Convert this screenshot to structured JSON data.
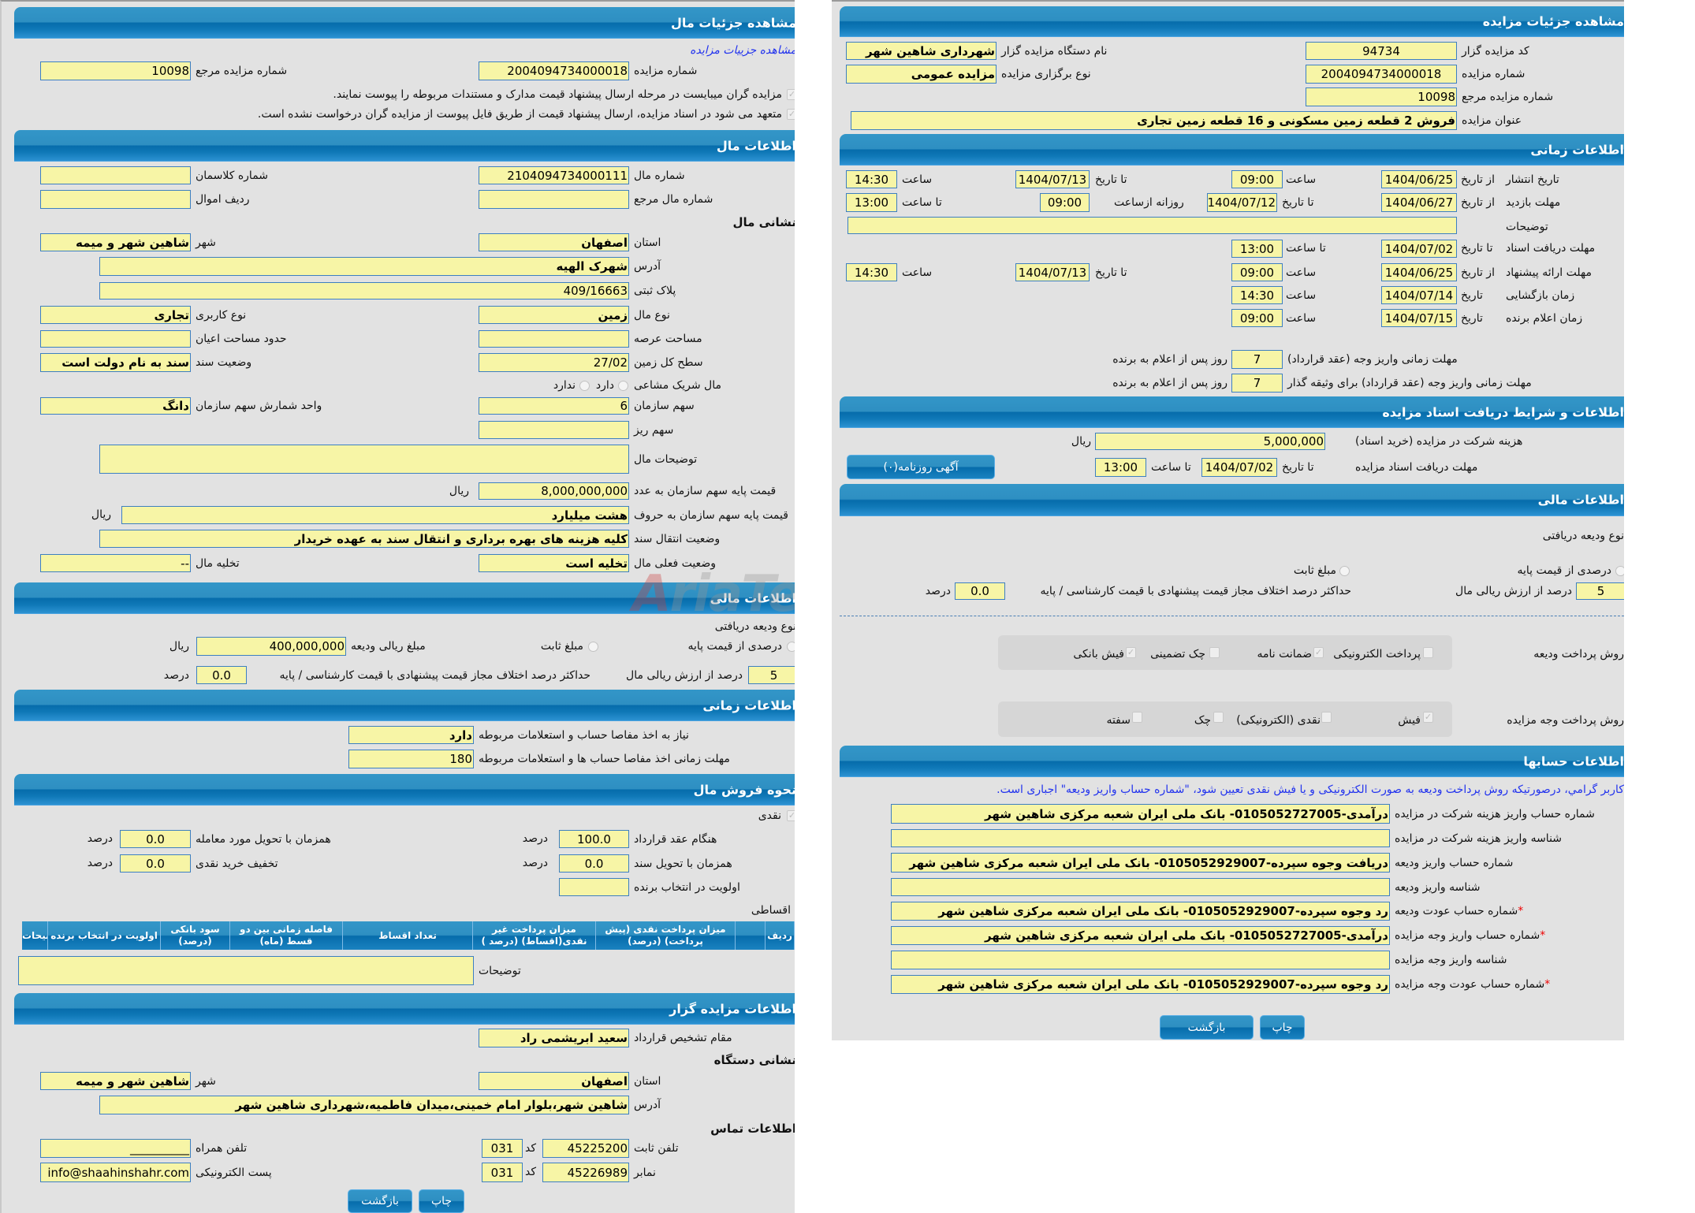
{
  "watermark": "AriaTender.net",
  "colors": {
    "header": "#0a6fae",
    "field_bg": "#f7f5a6",
    "field_border": "#3d7fc1",
    "link": "#2233ee",
    "required": "#ee0000"
  },
  "left": {
    "title": "مشاهده جزئیات مال",
    "view_auction_link": "مشاهده جزییات مزایده",
    "auction_number": {
      "label": "شماره مزایده",
      "value": "2004094734000018"
    },
    "ref_number": {
      "label": "شماره مزایده مرجع",
      "value": "10098"
    },
    "notices": [
      {
        "text": "مزایده گران میبایست در مرحله ارسال پیشنهاد قیمت مدارک و مستندات مربوطه را پیوست نمایند.",
        "checked": true
      },
      {
        "text": "متعهد می شود در اسناد مزایده، ارسال پیشنهاد قیمت از طریق فایل پیوست از مزایده گران درخواست نشده است.",
        "checked": true
      }
    ],
    "item": {
      "title": "اطلاعات مال",
      "item_number": {
        "label": "شماره مال",
        "value": "2104094734000111"
      },
      "classman": {
        "label": "شماره کلاسمان",
        "value": ""
      },
      "item_ref": {
        "label": "شماره مال مرجع",
        "value": ""
      },
      "asset_row": {
        "label": "ردیف اموال",
        "value": ""
      },
      "address_title": "نشانی مال",
      "province": {
        "label": "استان",
        "value": "اصفهان"
      },
      "city": {
        "label": "شهر",
        "value": "شاهین شهر و میمه"
      },
      "address": {
        "label": "آدرس",
        "value": "شهرک الهیه"
      },
      "plaque": {
        "label": "پلاک ثبتی",
        "value": "409/16663"
      },
      "type": {
        "label": "نوع مال",
        "value": "زمین"
      },
      "usage": {
        "label": "نوع کاربری",
        "value": "تجاری"
      },
      "land_area": {
        "label": "مساحت عرصه",
        "value": ""
      },
      "building_area": {
        "label": "حدود مساحت اعیان",
        "value": ""
      },
      "total_area": {
        "label": "سطح کل زمین",
        "value": "27/02"
      },
      "deed_status": {
        "label": "وضعیت سند",
        "value": "سند به نام دولت است"
      },
      "shared": {
        "label": "مال شریک مشاعی",
        "option_yes": "دارد",
        "option_no": "ندارد"
      },
      "org_share": {
        "label": "سهم سازمان",
        "value": "6"
      },
      "share_unit": {
        "label": "واحد شمارش سهم سازمان",
        "value": "دانگ"
      },
      "sub_share": {
        "label": "سهم ریز",
        "value": ""
      },
      "description": {
        "label": "توضیحات مال",
        "value": ""
      },
      "base_price": {
        "label": "قیمت پایه سهم سازمان به عدد",
        "value": "8,000,000,000",
        "unit": "ریال"
      },
      "base_price_words": {
        "label": "قیمت پایه سهم سازمان به حروف",
        "value": "هشت میلیارد",
        "unit": "ریال"
      },
      "transfer": {
        "label": "وضعیت انتقال سند",
        "value": "کلیه هزینه های بهره برداری و انتقال سند به عهده خریدار"
      },
      "current_status": {
        "label": "وضعیت فعلی مال",
        "value": "تخلیه است"
      },
      "eviction": {
        "label": "تخلیه مال",
        "value": "--"
      }
    },
    "finance": {
      "title": "اطلاعات مالی",
      "deposit_type_label": "نوع ودیعه دریافتی",
      "percent_option": "درصدی از قیمت پایه",
      "fixed_option": "مبلغ ثابت",
      "deposit_amount": {
        "label": "مبلغ ریالی ودیعه",
        "value": "400,000,000",
        "unit": "ریال"
      },
      "percent": {
        "label": "درصد از ارزش ریالی مال",
        "value": "5"
      },
      "max_diff": {
        "label": "حداکثر درصد اختلاف مجاز قیمت پیشنهادی با قیمت کارشناسی / پایه",
        "value": "0.0",
        "unit": "درصد"
      }
    },
    "timing": {
      "title": "اطلاعات زمانی",
      "settlement_needed": {
        "label": "نیاز به اخذ مفاصا حساب و استعلامات مربوطه",
        "value": "دارد"
      },
      "settlement_deadline": {
        "label": "مهلت زمانی اخذ مفاصا حساب ها و استعلامات مربوطه",
        "value": "180"
      }
    },
    "sale": {
      "title": "نحوه فروش مال",
      "cash": {
        "label": "نقدی",
        "checked": true
      },
      "on_contract": {
        "label": "هنگام عقد قرارداد",
        "value": "100.0",
        "unit": "درصد"
      },
      "on_delivery": {
        "label": "همزمان با تحویل مورد معامله",
        "value": "0.0",
        "unit": "درصد"
      },
      "on_deed": {
        "label": "همزمان با تحویل سند",
        "value": "0.0",
        "unit": "درصد"
      },
      "cash_discount": {
        "label": "تخفیف خرید نقدی",
        "value": "0.0",
        "unit": "درصد"
      },
      "priority": {
        "label": "اولویت در انتخاب برنده",
        "value": ""
      },
      "installment_label": "اقساطی",
      "table_headers": [
        "ردیف",
        "",
        "میزان پرداخت نقدی (پیش پرداخت) (درصد)",
        "میزان پرداخت غیر نقدی(اقساط) (درصد )",
        "تعداد اقساط",
        "فاصله زمانی بین دو قسط (ماه)",
        "سود بانکی (درصد)",
        "اولویت در انتخاب برنده",
        "توضیحات"
      ],
      "description": {
        "label": "توضیحات",
        "value": ""
      }
    },
    "auctioneer": {
      "title": "اطلاعات مزایده گزار",
      "authority": {
        "label": "مقام تشخیص قرارداد",
        "value": "سعید ابریشمی راد"
      },
      "address_title": "نشانی دستگاه",
      "province": {
        "label": "استان",
        "value": "اصفهان"
      },
      "city": {
        "label": "شهر",
        "value": "شاهین شهر و میمه"
      },
      "address": {
        "label": "آدرس",
        "value": "شاهین شهر،بلوار امام خمینی،میدان فاطمیه،شهرداری شاهین شهر"
      },
      "contact_title": "اطلاعات تماس",
      "phone": {
        "label": "تلفن ثابت",
        "value": "45225200",
        "code_label": "کد",
        "code": "031"
      },
      "mobile": {
        "label": "تلفن همراه",
        "value": "__________"
      },
      "fax": {
        "label": "نمابر",
        "value": "45226989",
        "code_label": "کد",
        "code": "031"
      },
      "email": {
        "label": "پست الکترونیکی",
        "value": "info@shaahinshahr.com"
      }
    },
    "print_button": "چاپ",
    "back_button": "بازگشت"
  },
  "right": {
    "title": "مشاهده جزئیات مزایده",
    "auctioneer_code": {
      "label": "کد مزایده گزار",
      "value": "94734"
    },
    "org_name": {
      "label": "نام دستگاه مزایده گزار",
      "value": "شهرداری شاهین شهر"
    },
    "auction_number": {
      "label": "شماره مزایده",
      "value": "2004094734000018"
    },
    "holding_type": {
      "label": "نوع برگزاری مزایده",
      "value": "مزایده عمومی"
    },
    "ref_number": {
      "label": "شماره مزایده مرجع",
      "value": "10098"
    },
    "subject": {
      "label": "عنوان مزایده",
      "value": "فروش 2 قطعه زمین مسکونی  و 16 قطعه زمین تجاری"
    },
    "timing": {
      "title": "اطلاعات زمانی",
      "publish": {
        "label": "تاریخ انتشار",
        "from_label": "از تاریخ",
        "from": "1404/06/25",
        "time_label": "ساعت",
        "from_time": "09:00",
        "to_label": "تا تاریخ",
        "to": "1404/07/13",
        "to_time_label": "ساعت",
        "to_time": "14:30"
      },
      "visit": {
        "label": "مهلت بازدید",
        "from_label": "از تاریخ",
        "from": "1404/06/27",
        "to_label": "تا تاریخ",
        "to": "1404/07/12",
        "daily_label": "روزانه ازساعت",
        "daily_from": "09:00",
        "until_label": "تا ساعت",
        "until": "13:00"
      },
      "description": {
        "label": "توضیحات",
        "value": ""
      },
      "doc_deadline": {
        "label": "مهلت دریافت اسناد",
        "to_label": "تا تاریخ",
        "to": "1404/07/02",
        "time_label": "تا ساعت",
        "time": "13:00"
      },
      "offer": {
        "label": "مهلت ارائه پیشنهاد",
        "from_label": "از تاریخ",
        "from": "1404/06/25",
        "time_label": "ساعت",
        "from_time": "09:00",
        "to_label": "تا تاریخ",
        "to": "1404/07/13",
        "to_time_label": "ساعت",
        "to_time": "14:30"
      },
      "opening": {
        "label": "زمان بازگشایی",
        "date_label": "تاریخ",
        "date": "1404/07/14",
        "time_label": "ساعت",
        "time": "14:30"
      },
      "winner": {
        "label": "زمان اعلام برنده",
        "date_label": "تاریخ",
        "date": "1404/07/15",
        "time_label": "ساعت",
        "time": "09:00"
      },
      "pay_deadline": {
        "label": "مهلت زمانی واریز وجه (عقد قرارداد)",
        "value": "7",
        "suffix": "روز پس از اعلام به برنده"
      },
      "pay_deadline_collateral": {
        "label": "مهلت زمانی واریز وجه (عقد قرارداد) برای وثیقه گذار",
        "value": "7",
        "suffix": "روز پس از اعلام به برنده"
      }
    },
    "docs": {
      "title": "اطلاعات و شرایط دریافت اسناد مزایده",
      "fee": {
        "label": "هزینه شرکت در مزایده (خرید اسناد)",
        "value": "5,000,000",
        "unit": "ریال"
      },
      "deadline": {
        "label": "مهلت دریافت اسناد مزایده",
        "to_label": "تا تاریخ",
        "to": "1404/07/02",
        "time_label": "تا ساعت",
        "time": "13:00"
      },
      "newspaper_button": "آگهی روزنامه(۰)"
    },
    "finance": {
      "title": "اطلاعات مالی",
      "deposit_type_label": "نوع ودیعه دریافتی",
      "percent_option": "درصدی از قیمت پایه",
      "fixed_option": "مبلغ ثابت",
      "percent": {
        "label": "درصد از ارزش ریالی مال",
        "value": "5"
      },
      "max_diff": {
        "label": "حداکثر درصد اختلاف مجاز قیمت پیشنهادی با قیمت کارشناسی / پایه",
        "value": "0.0",
        "unit": "درصد"
      },
      "deposit_methods": {
        "label": "روش پرداخت ودیعه",
        "options": [
          {
            "label": "پرداخت الکترونیکی",
            "checked": false
          },
          {
            "label": "ضمانت نامه",
            "checked": true
          },
          {
            "label": "چک تضمینی",
            "checked": false
          },
          {
            "label": "فیش بانکی",
            "checked": true
          }
        ]
      },
      "payment_methods": {
        "label": "روش پرداخت وجه مزایده",
        "options": [
          {
            "label": "فیش",
            "checked": true
          },
          {
            "label": "نقدی (الکترونیکی)",
            "checked": false
          },
          {
            "label": "چک",
            "checked": false
          },
          {
            "label": "سفته",
            "checked": false
          }
        ]
      }
    },
    "accounts": {
      "title": "اطلاعات حسابها",
      "note": "کاربر گرامي، درصورتیکه روش پرداخت ودیعه به صورت الکترونیکی و یا فیش نقدی تعیین شود، \"شماره حساب واریز ودیعه\" اجباری است.",
      "rows": [
        {
          "label": "شماره حساب واریز هزینه شرکت در مزایده",
          "value": "درآمدی-0105052727005- بانک ملی ایران شعبه مرکزی شاهین شهر",
          "required": false
        },
        {
          "label": "شناسه واریز هزینه شرکت در مزایده",
          "value": "",
          "required": false
        },
        {
          "label": "شماره حساب واریز ودیعه",
          "value": "دریافت وجوه سپرده-0105052929007- بانک ملی ایران شعبه مرکزی شاهین شهر",
          "required": false
        },
        {
          "label": "شناسه واریز ودیعه",
          "value": "",
          "required": false
        },
        {
          "label": "شماره حساب عودت ودیعه",
          "value": "رد وجوه سپرده-0105052929007- بانک ملی ایران شعبه مرکزی شاهین شهر",
          "required": true
        },
        {
          "label": "شماره حساب واریز وجه مزایده",
          "value": "درآمدی-0105052727005- بانک ملی ایران شعبه مرکزی شاهین شهر",
          "required": true
        },
        {
          "label": "شناسه واریز وجه مزایده",
          "value": "",
          "required": false
        },
        {
          "label": "شماره حساب عودت وجه مزایده",
          "value": "رد وجوه سپرده-0105052929007- بانک ملی ایران شعبه مرکزی شاهین شهر",
          "required": true
        }
      ],
      "required_mark": "*"
    },
    "print_button": "چاپ",
    "back_button": "بازگشت"
  }
}
